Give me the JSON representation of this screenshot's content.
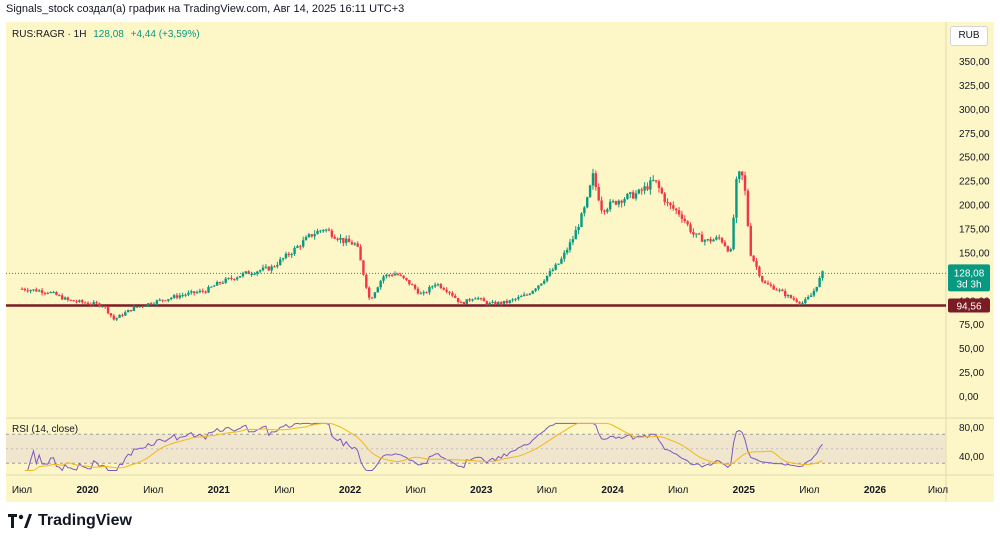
{
  "header": {
    "attribution": "Signals_stock создал(а) график на TradingView.com, Авг 14, 2025 16:11 UTC+3"
  },
  "legend": {
    "symbol": "RUS:RAGR · 1H",
    "price": "128,08",
    "change": "+4,44 (+3,59%)"
  },
  "currency_button": "RUB",
  "price_tag": {
    "price": "128,08",
    "countdown": "3d 3h"
  },
  "level_tag": {
    "price": "94,56"
  },
  "rsi": {
    "label": "RSI (14, close)",
    "ticks": [
      "80,00",
      "40,00"
    ]
  },
  "footer": {
    "brand": "TradingView"
  },
  "colors": {
    "up": "#089981",
    "down": "#f23645",
    "level": "#7b1c24",
    "rsi": "#7e57c2",
    "rsi_ma": "#f2b81a",
    "background": "#fdf6c7"
  },
  "chart_data": {
    "type": "candlestick",
    "symbol": "RUS:RAGR",
    "interval": "1H",
    "y_ticks": [
      "0,00",
      "25,00",
      "50,00",
      "75,00",
      "100,00",
      "125,00",
      "150,00",
      "175,00",
      "200,00",
      "225,00",
      "250,00",
      "275,00",
      "300,00",
      "325,00",
      "350,00"
    ],
    "x_ticks": [
      "Июл",
      "2020",
      "Июл",
      "2021",
      "Июл",
      "2022",
      "Июл",
      "2023",
      "Июл",
      "2024",
      "Июл",
      "2025",
      "Июл",
      "2026",
      "Июл"
    ],
    "y_range": [
      0,
      350
    ],
    "horizontal_level": 94.56,
    "last_price": 128.08,
    "price_path": [
      {
        "t": 2019.5,
        "v": 112
      },
      {
        "t": 2019.7,
        "v": 109
      },
      {
        "t": 2019.85,
        "v": 100
      },
      {
        "t": 2020.0,
        "v": 97
      },
      {
        "t": 2020.12,
        "v": 95
      },
      {
        "t": 2020.2,
        "v": 80
      },
      {
        "t": 2020.35,
        "v": 92
      },
      {
        "t": 2020.5,
        "v": 98
      },
      {
        "t": 2020.7,
        "v": 105
      },
      {
        "t": 2020.9,
        "v": 110
      },
      {
        "t": 2021.0,
        "v": 118
      },
      {
        "t": 2021.2,
        "v": 128
      },
      {
        "t": 2021.4,
        "v": 134
      },
      {
        "t": 2021.55,
        "v": 150
      },
      {
        "t": 2021.7,
        "v": 168
      },
      {
        "t": 2021.8,
        "v": 175
      },
      {
        "t": 2021.95,
        "v": 162
      },
      {
        "t": 2022.05,
        "v": 158
      },
      {
        "t": 2022.15,
        "v": 100
      },
      {
        "t": 2022.25,
        "v": 125
      },
      {
        "t": 2022.35,
        "v": 128
      },
      {
        "t": 2022.45,
        "v": 118
      },
      {
        "t": 2022.55,
        "v": 105
      },
      {
        "t": 2022.65,
        "v": 118
      },
      {
        "t": 2022.75,
        "v": 110
      },
      {
        "t": 2022.85,
        "v": 96
      },
      {
        "t": 2022.95,
        "v": 104
      },
      {
        "t": 2023.05,
        "v": 96
      },
      {
        "t": 2023.2,
        "v": 98
      },
      {
        "t": 2023.35,
        "v": 106
      },
      {
        "t": 2023.45,
        "v": 118
      },
      {
        "t": 2023.6,
        "v": 140
      },
      {
        "t": 2023.7,
        "v": 165
      },
      {
        "t": 2023.8,
        "v": 200
      },
      {
        "t": 2023.85,
        "v": 230
      },
      {
        "t": 2023.92,
        "v": 195
      },
      {
        "t": 2024.05,
        "v": 205
      },
      {
        "t": 2024.2,
        "v": 212
      },
      {
        "t": 2024.32,
        "v": 225
      },
      {
        "t": 2024.42,
        "v": 200
      },
      {
        "t": 2024.52,
        "v": 190
      },
      {
        "t": 2024.62,
        "v": 168
      },
      {
        "t": 2024.72,
        "v": 162
      },
      {
        "t": 2024.82,
        "v": 165
      },
      {
        "t": 2024.9,
        "v": 150
      },
      {
        "t": 2024.95,
        "v": 232
      },
      {
        "t": 2025.0,
        "v": 228
      },
      {
        "t": 2025.05,
        "v": 150
      },
      {
        "t": 2025.15,
        "v": 118
      },
      {
        "t": 2025.25,
        "v": 112
      },
      {
        "t": 2025.35,
        "v": 103
      },
      {
        "t": 2025.45,
        "v": 97
      },
      {
        "t": 2025.52,
        "v": 106
      },
      {
        "t": 2025.6,
        "v": 128
      }
    ],
    "rsi_ticks": [
      80,
      40
    ]
  }
}
